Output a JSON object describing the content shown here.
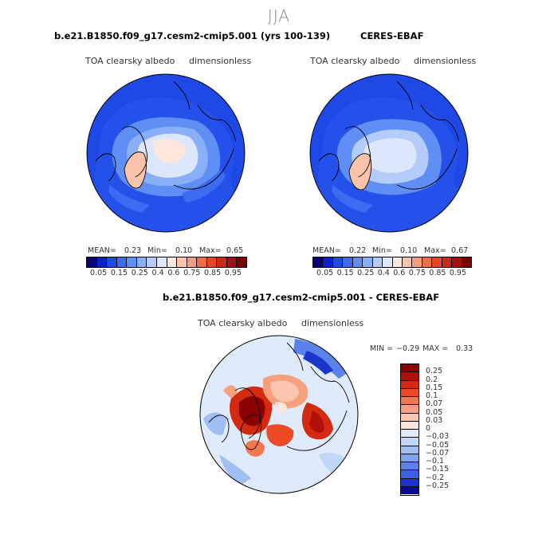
{
  "season": "JJA",
  "panels": [
    {
      "title": "b.e21.B1850.f09_g17.cesm2-cmip5.001 (yrs 100-139)",
      "variable": "TOA clearsky albedo",
      "units": "dimensionless",
      "mean_label": "MEAN=",
      "mean": "0.23",
      "min_label": "Min=",
      "min": "0.10",
      "max_label": "Max=",
      "max": "0.65"
    },
    {
      "title": "CERES-EBAF",
      "variable": "TOA clearsky albedo",
      "units": "dimensionless",
      "mean_label": "MEAN=",
      "mean": "0.22",
      "min_label": "Min=",
      "min": "0.10",
      "max_label": "Max=",
      "max": "0.67"
    }
  ],
  "colorbar": {
    "ticks": [
      "0.05",
      "0.15",
      "0.25",
      "0.4",
      "0.6",
      "0.75",
      "0.85",
      "0.95"
    ],
    "colors": [
      "#08007a",
      "#0a20c8",
      "#1f49e6",
      "#3b6cf2",
      "#5f8ff5",
      "#88aff7",
      "#b3ccfa",
      "#dce7fb",
      "#fde6dc",
      "#fbc3aa",
      "#f59d7f",
      "#ef6e4a",
      "#e6472a",
      "#cc2a13",
      "#a50f0f",
      "#7a0000"
    ]
  },
  "diff_panel": {
    "title": "b.e21.B1850.f09_g17.cesm2-cmip5.001 - CERES-EBAF",
    "variable": "TOA clearsky albedo",
    "units": "dimensionless",
    "min_label": "MIN =",
    "min": "−0.29",
    "max_label": "MAX =",
    "max": "0.33",
    "ticks": [
      "0.25",
      "0.2",
      "0.15",
      "0.1",
      "0.07",
      "0.05",
      "0.03",
      "0",
      "−0.03",
      "−0.05",
      "−0.07",
      "−0.1",
      "−0.15",
      "−0.2",
      "−0.25"
    ],
    "colors": [
      "#8b0000",
      "#b01008",
      "#d32a10",
      "#ec4a24",
      "#f2774e",
      "#f7a07f",
      "#fbc5ae",
      "#fde6dc",
      "#dfeafb",
      "#c2d6f8",
      "#a2bff4",
      "#7ea2ef",
      "#5a82ea",
      "#3a5fe0",
      "#1c36cc",
      "#0a0a96"
    ]
  }
}
